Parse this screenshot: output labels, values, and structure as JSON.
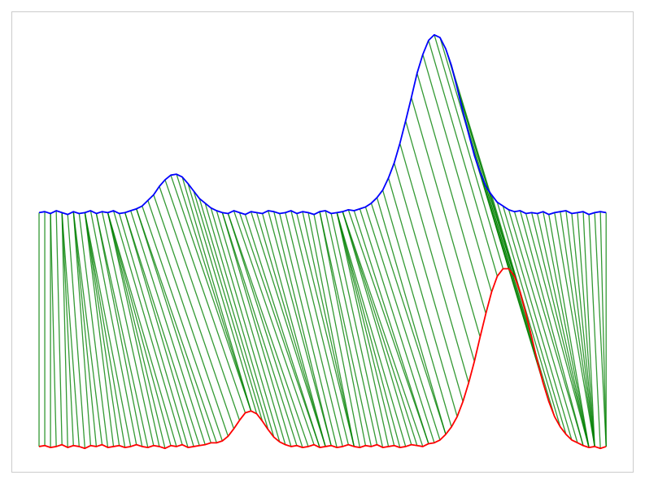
{
  "chart_data": {
    "type": "dtw",
    "x": [
      0,
      1,
      2,
      3,
      4,
      5,
      6,
      7,
      8,
      9,
      10,
      11,
      12,
      13,
      14,
      15,
      16,
      17,
      18,
      19,
      20,
      21,
      22,
      23,
      24,
      25,
      26,
      27,
      28,
      29,
      30,
      31,
      32,
      33,
      34,
      35,
      36,
      37,
      38,
      39,
      40,
      41,
      42,
      43,
      44,
      45,
      46,
      47,
      48,
      49,
      50,
      51,
      52,
      53,
      54,
      55,
      56,
      57,
      58,
      59,
      60,
      61,
      62,
      63,
      64,
      65,
      66,
      67,
      68,
      69,
      70,
      71,
      72,
      73,
      74,
      75,
      76,
      77,
      78,
      79,
      80,
      81,
      82,
      83,
      84,
      85,
      86,
      87,
      88,
      89,
      90,
      91,
      92,
      93,
      94,
      95,
      96,
      97,
      98,
      99
    ],
    "series": [
      {
        "color": "#0000ff",
        "values": [
          0.0,
          0.01,
          -0.01,
          0.02,
          0.0,
          -0.02,
          0.01,
          -0.01,
          0.0,
          0.02,
          -0.01,
          0.01,
          0.0,
          0.02,
          -0.01,
          0.0,
          0.02,
          0.04,
          0.07,
          0.13,
          0.19,
          0.28,
          0.35,
          0.4,
          0.41,
          0.38,
          0.31,
          0.23,
          0.15,
          0.1,
          0.05,
          0.02,
          0.0,
          -0.01,
          0.02,
          0.0,
          -0.02,
          0.01,
          0.0,
          -0.01,
          0.02,
          0.01,
          -0.01,
          0.0,
          0.02,
          -0.01,
          0.01,
          0.0,
          -0.02,
          0.01,
          0.02,
          -0.01,
          0.0,
          0.01,
          0.03,
          0.02,
          0.04,
          0.06,
          0.1,
          0.16,
          0.24,
          0.37,
          0.53,
          0.74,
          0.98,
          1.23,
          1.49,
          1.69,
          1.84,
          1.9,
          1.87,
          1.75,
          1.57,
          1.33,
          1.08,
          0.84,
          0.61,
          0.43,
          0.28,
          0.19,
          0.11,
          0.07,
          0.03,
          0.01,
          0.02,
          -0.01,
          0.0,
          -0.01,
          0.01,
          -0.02,
          0.0,
          0.01,
          0.02,
          -0.01,
          0.0,
          0.01,
          -0.02,
          0.0,
          0.01,
          0.0
        ]
      },
      {
        "color": "#ff0000",
        "values": [
          -2.5,
          -2.49,
          -2.51,
          -2.5,
          -2.48,
          -2.51,
          -2.49,
          -2.5,
          -2.52,
          -2.49,
          -2.5,
          -2.48,
          -2.51,
          -2.5,
          -2.49,
          -2.51,
          -2.5,
          -2.48,
          -2.5,
          -2.51,
          -2.49,
          -2.5,
          -2.52,
          -2.49,
          -2.5,
          -2.48,
          -2.51,
          -2.5,
          -2.49,
          -2.48,
          -2.46,
          -2.46,
          -2.44,
          -2.39,
          -2.31,
          -2.22,
          -2.14,
          -2.12,
          -2.15,
          -2.23,
          -2.32,
          -2.4,
          -2.45,
          -2.48,
          -2.5,
          -2.49,
          -2.51,
          -2.5,
          -2.48,
          -2.51,
          -2.5,
          -2.49,
          -2.51,
          -2.5,
          -2.48,
          -2.5,
          -2.51,
          -2.49,
          -2.5,
          -2.48,
          -2.51,
          -2.5,
          -2.49,
          -2.51,
          -2.5,
          -2.48,
          -2.49,
          -2.5,
          -2.47,
          -2.46,
          -2.43,
          -2.37,
          -2.29,
          -2.18,
          -2.02,
          -1.82,
          -1.59,
          -1.33,
          -1.08,
          -0.85,
          -0.68,
          -0.6,
          -0.6,
          -0.68,
          -0.85,
          -1.08,
          -1.33,
          -1.59,
          -1.82,
          -2.02,
          -2.18,
          -2.29,
          -2.37,
          -2.43,
          -2.46,
          -2.49,
          -2.51,
          -2.5,
          -2.52,
          -2.5
        ]
      }
    ],
    "link_color": "#008000",
    "xlim": [
      -4.83,
      103.8
    ],
    "ylim": [
      -2.77,
      2.15
    ]
  }
}
